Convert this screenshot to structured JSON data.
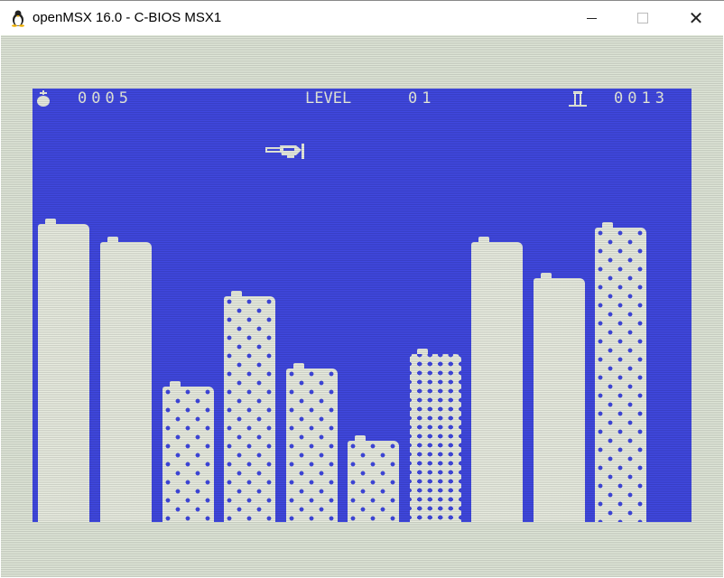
{
  "window": {
    "title": "openMSX 16.0 - C-BIOS MSX1",
    "minimize_icon": "minimize-icon",
    "maximize_icon": "maximize-icon",
    "close_icon": "close-icon"
  },
  "hud": {
    "bombs": "0005",
    "level_label": "LEVEL",
    "level": "01",
    "buildings_label_icon": "building-icon",
    "score": "0013"
  },
  "colors": {
    "sky": "#4048e0",
    "building": "#e8ece0",
    "border": "#dfe6d8"
  },
  "buildings": [
    {
      "style": "plain"
    },
    {
      "style": "plain"
    },
    {
      "style": "dots"
    },
    {
      "style": "dots"
    },
    {
      "style": "dots"
    },
    {
      "style": "dots"
    },
    {
      "style": "grid"
    },
    {
      "style": "plain"
    },
    {
      "style": "plain"
    },
    {
      "style": "dots"
    }
  ]
}
